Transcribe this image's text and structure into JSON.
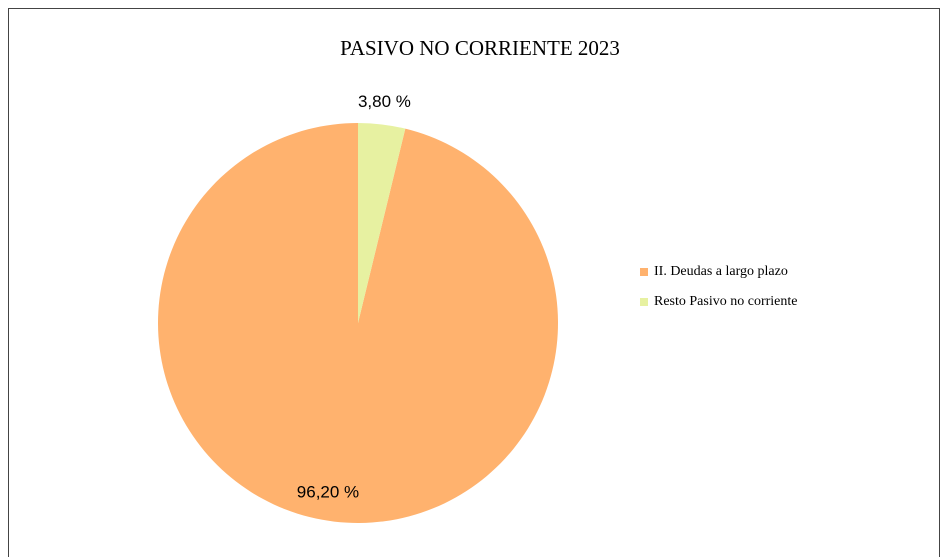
{
  "chart_data": {
    "type": "pie",
    "title": "PASIVO NO CORRIENTE 2023",
    "categories": [
      "II. Deudas a largo plazo",
      "Resto Pasivo no corriente"
    ],
    "values": [
      96.2,
      3.8
    ],
    "value_labels": [
      "96,20 %",
      "3,80 %"
    ],
    "colors": [
      "#ffb26e",
      "#e7f1a1"
    ],
    "legend": "right"
  }
}
